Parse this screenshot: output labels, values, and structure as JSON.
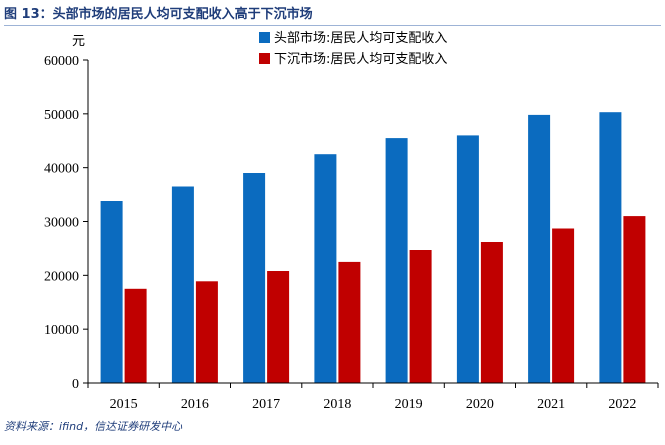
{
  "title": "图 13：头部市场的居民人均可支配收入高于下沉市场",
  "source": "资料来源：ifind，信达证券研发中心",
  "chart_data": {
    "type": "bar",
    "title": "图 13：头部市场的居民人均可支配收入高于下沉市场",
    "ylabel": "元",
    "xlabel": "",
    "categories": [
      "2015",
      "2016",
      "2017",
      "2018",
      "2019",
      "2020",
      "2021",
      "2022"
    ],
    "ylim": [
      0,
      60000
    ],
    "yticks": [
      0,
      10000,
      20000,
      30000,
      40000,
      50000,
      60000
    ],
    "legend_position": "top-right",
    "grid": false,
    "series": [
      {
        "name": "头部市场:居民人均可支配收入",
        "color": "#0b6bbf",
        "values": [
          33800,
          36500,
          39000,
          42500,
          45500,
          46000,
          49800,
          50300
        ]
      },
      {
        "name": "下沉市场:居民人均可支配收入",
        "color": "#c00000",
        "values": [
          17500,
          18900,
          20800,
          22500,
          24700,
          26200,
          28700,
          31000
        ]
      }
    ]
  }
}
